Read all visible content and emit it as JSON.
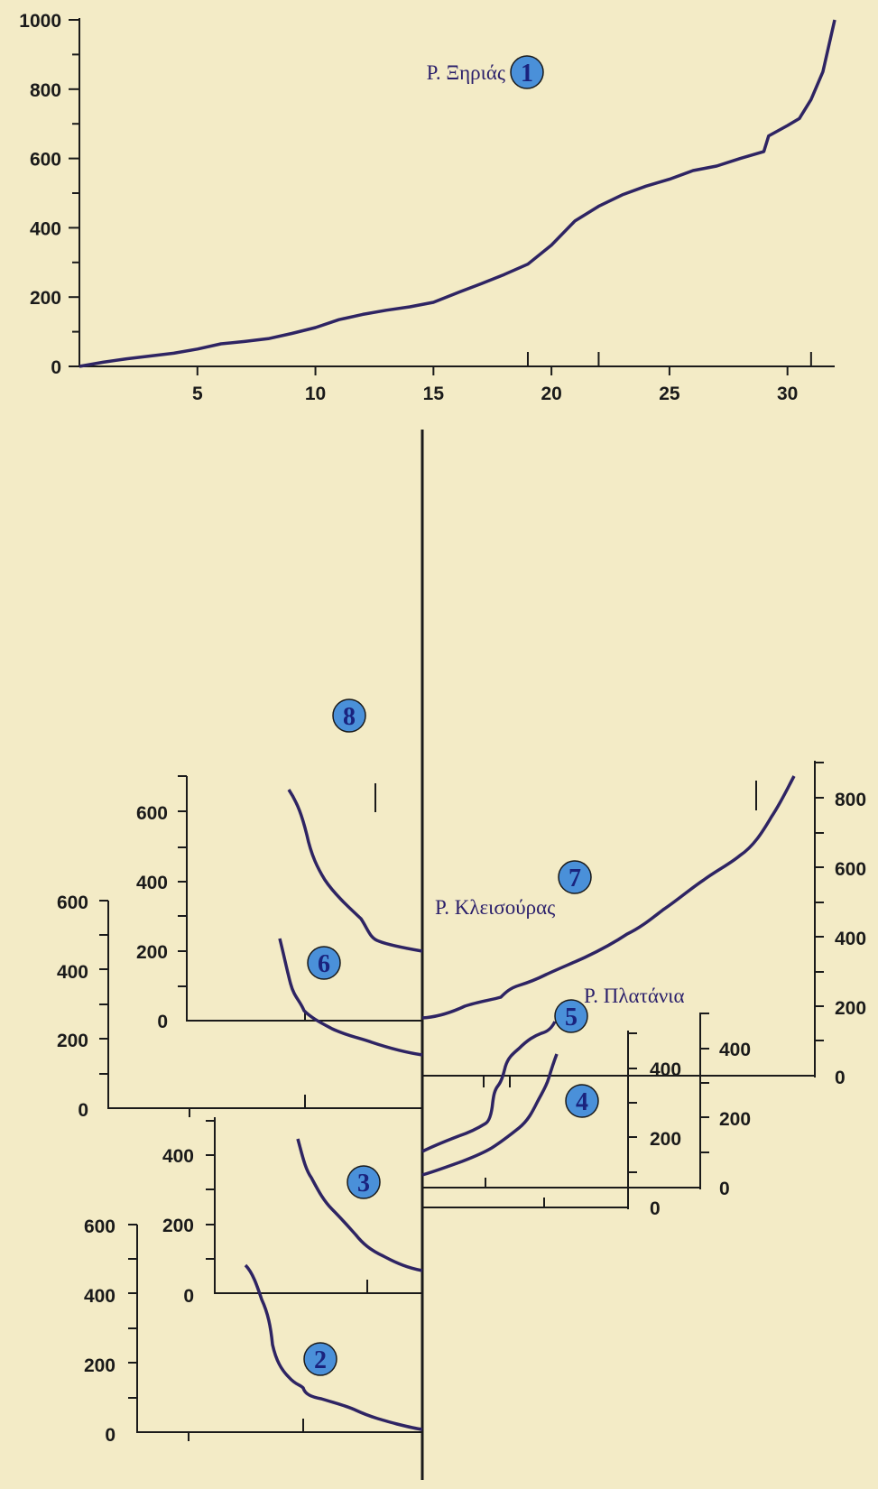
{
  "chart_data": [
    {
      "type": "line",
      "id": "main-profile",
      "badge": "1",
      "label": "Ρ. Ξηριάς",
      "xlim": [
        0,
        32
      ],
      "ylim": [
        0,
        1000
      ],
      "xticks": [
        5,
        10,
        15,
        20,
        25,
        30
      ],
      "xticklabels": [
        "5",
        "10",
        "15",
        "20",
        "25",
        "30"
      ],
      "yticks": [
        0,
        200,
        400,
        600,
        800,
        1000
      ],
      "yticklabels": [
        "0",
        "200",
        "400",
        "600",
        "800",
        "1000"
      ],
      "tributary_marks_x": [
        19,
        22,
        31
      ],
      "series": [
        {
          "name": "Ρ. Ξηριάς",
          "x": [
            0,
            1,
            2,
            3,
            4,
            5,
            6,
            7,
            8,
            9,
            10,
            11,
            12,
            13,
            14,
            15,
            16,
            17,
            18,
            19,
            20,
            21,
            22,
            23,
            24,
            25,
            26,
            27,
            28,
            29,
            29.2,
            30,
            30.5,
            31,
            31.5,
            32
          ],
          "y": [
            0,
            12,
            22,
            30,
            38,
            50,
            65,
            72,
            80,
            95,
            112,
            135,
            150,
            162,
            172,
            185,
            212,
            238,
            265,
            295,
            350,
            420,
            462,
            495,
            520,
            540,
            565,
            578,
            600,
            620,
            665,
            695,
            715,
            770,
            850,
            1000
          ]
        }
      ]
    }
  ],
  "tributaries": [
    {
      "id": "trib-2",
      "badge": "2",
      "yticklabels": [
        "0",
        "200",
        "400",
        "600"
      ],
      "yvalues": [
        0,
        200,
        400,
        600
      ]
    },
    {
      "id": "trib-3",
      "badge": "3",
      "yticklabels": [
        "0",
        "200",
        "400"
      ],
      "yvalues": [
        0,
        200,
        400
      ]
    },
    {
      "id": "trib-4",
      "badge": "4",
      "yticklabels": [
        "0",
        "200",
        "400"
      ],
      "yvalues": [
        0,
        200,
        400
      ]
    },
    {
      "id": "trib-5",
      "badge": "5",
      "label": "Ρ. Πλατάνια",
      "yticklabels": [
        "0",
        "200",
        "400"
      ],
      "yvalues": [
        0,
        200,
        400
      ]
    },
    {
      "id": "trib-6",
      "badge": "6",
      "yticklabels": [
        "0",
        "200",
        "400",
        "600"
      ],
      "yvalues": [
        0,
        200,
        400,
        600
      ]
    },
    {
      "id": "trib-7",
      "badge": "7",
      "label": "Ρ. Κλεισούρας",
      "yticklabels": [
        "0",
        "200",
        "400",
        "600",
        "800"
      ],
      "yvalues": [
        0,
        200,
        400,
        600,
        800
      ]
    },
    {
      "id": "trib-8",
      "badge": "8",
      "yticklabels": [
        "0",
        "200",
        "400",
        "600"
      ],
      "yvalues": [
        0,
        200,
        400,
        600
      ]
    }
  ],
  "colors": {
    "background": "#f3ebc6",
    "curve": "#2e2463",
    "axis": "#1a1a1a",
    "badge_fill": "#4a90d9",
    "badge_text": "#1a237e"
  }
}
